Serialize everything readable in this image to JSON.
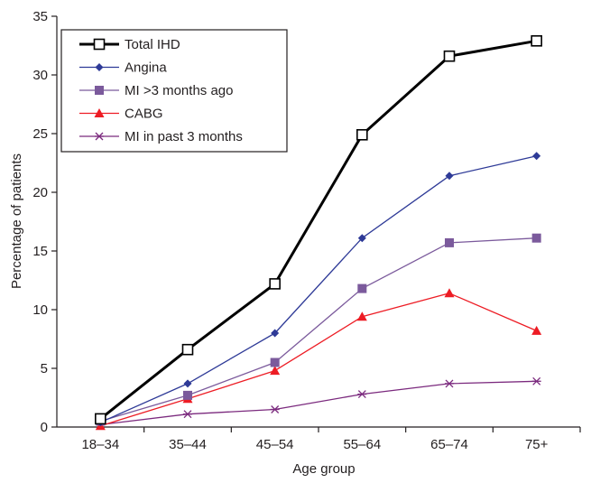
{
  "chart_data": {
    "type": "line",
    "title": "",
    "xlabel": "Age group",
    "ylabel": "Percentage of patients",
    "categories": [
      "18–34",
      "35–44",
      "45–54",
      "55–64",
      "65–74",
      "75+"
    ],
    "ylim": [
      0,
      35
    ],
    "yticks": [
      0,
      5,
      10,
      15,
      20,
      25,
      30,
      35
    ],
    "grid": false,
    "legend_position": "top-left",
    "series": [
      {
        "name": "Total IHD",
        "values": [
          0.7,
          6.6,
          12.2,
          24.9,
          31.6,
          32.9
        ],
        "color": "#000000",
        "marker": "open-square"
      },
      {
        "name": "Angina",
        "values": [
          0.4,
          3.7,
          8.0,
          16.1,
          21.4,
          23.1
        ],
        "color": "#2e3a97",
        "marker": "diamond"
      },
      {
        "name": "MI >3 months ago",
        "values": [
          0.5,
          2.7,
          5.5,
          11.8,
          15.7,
          16.1
        ],
        "color": "#7b5a9c",
        "marker": "square"
      },
      {
        "name": "CABG",
        "values": [
          0.1,
          2.4,
          4.8,
          9.4,
          11.4,
          8.2
        ],
        "color": "#ed1c24",
        "marker": "triangle"
      },
      {
        "name": "MI in past 3 months",
        "values": [
          0.2,
          1.1,
          1.5,
          2.8,
          3.7,
          3.9
        ],
        "color": "#7b2a7e",
        "marker": "asterisk"
      }
    ]
  }
}
